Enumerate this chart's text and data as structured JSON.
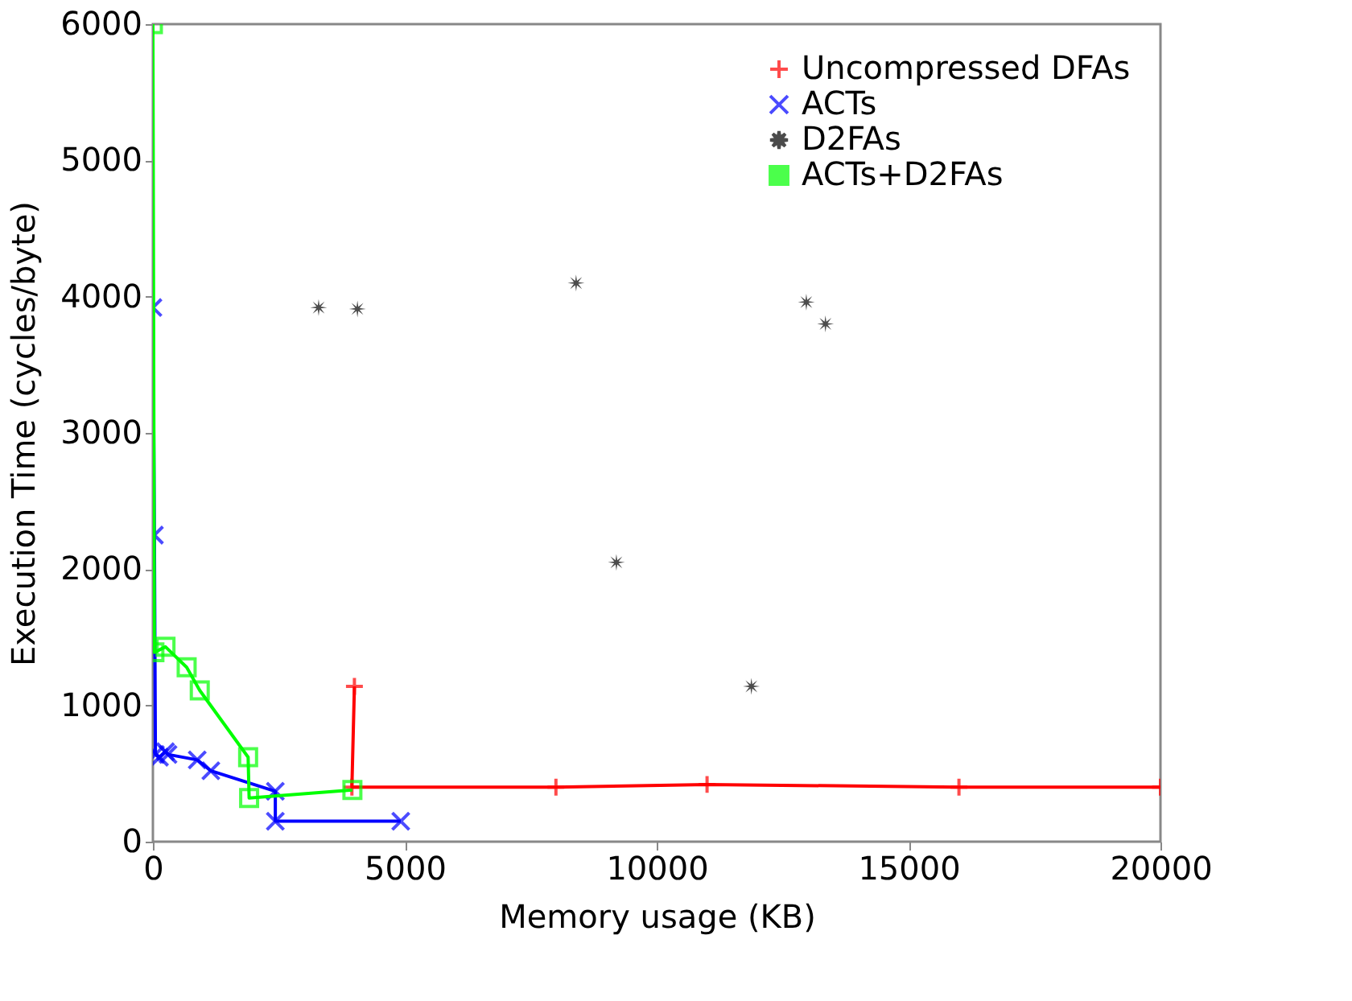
{
  "chart_data": {
    "type": "line",
    "xlabel": "Memory usage (KB)",
    "ylabel": "Execution Time (cycles/byte)",
    "xlim": [
      0,
      20000
    ],
    "ylim": [
      0,
      6000
    ],
    "xticks": [
      0,
      5000,
      10000,
      15000,
      20000
    ],
    "yticks": [
      0,
      1000,
      2000,
      3000,
      4000,
      5000,
      6000
    ],
    "grid": false,
    "legend": "top right",
    "series": [
      {
        "name": "Uncompressed DFAs",
        "color": "#ff0000",
        "marker": "cross",
        "x": [
          4000,
          3950,
          8000,
          11000,
          16000,
          20000
        ],
        "values": [
          1140,
          400,
          400,
          420,
          400,
          400
        ]
      },
      {
        "name": "ACTs",
        "color": "#0000ff",
        "marker": "x",
        "x": [
          0,
          30,
          50,
          130,
          250,
          300,
          880,
          1150,
          2430,
          2430,
          4920
        ],
        "values": [
          3920,
          2250,
          640,
          620,
          660,
          640,
          600,
          520,
          370,
          150,
          150
        ]
      },
      {
        "name": "D2FAs",
        "color": "#000000",
        "type": "scatter",
        "marker": "star",
        "x": [
          3290,
          4060,
          8400,
          9200,
          11880,
          12970,
          13350
        ],
        "values": [
          3920,
          3910,
          4100,
          2050,
          1140,
          3960,
          3800
        ]
      },
      {
        "name": "ACTs+D2FAs",
        "color": "#00ff00",
        "marker": "square",
        "x": [
          0,
          30,
          250,
          670,
          930,
          1890,
          1910,
          3960
        ],
        "values": [
          6000,
          1390,
          1430,
          1280,
          1110,
          620,
          320,
          380
        ]
      }
    ]
  }
}
